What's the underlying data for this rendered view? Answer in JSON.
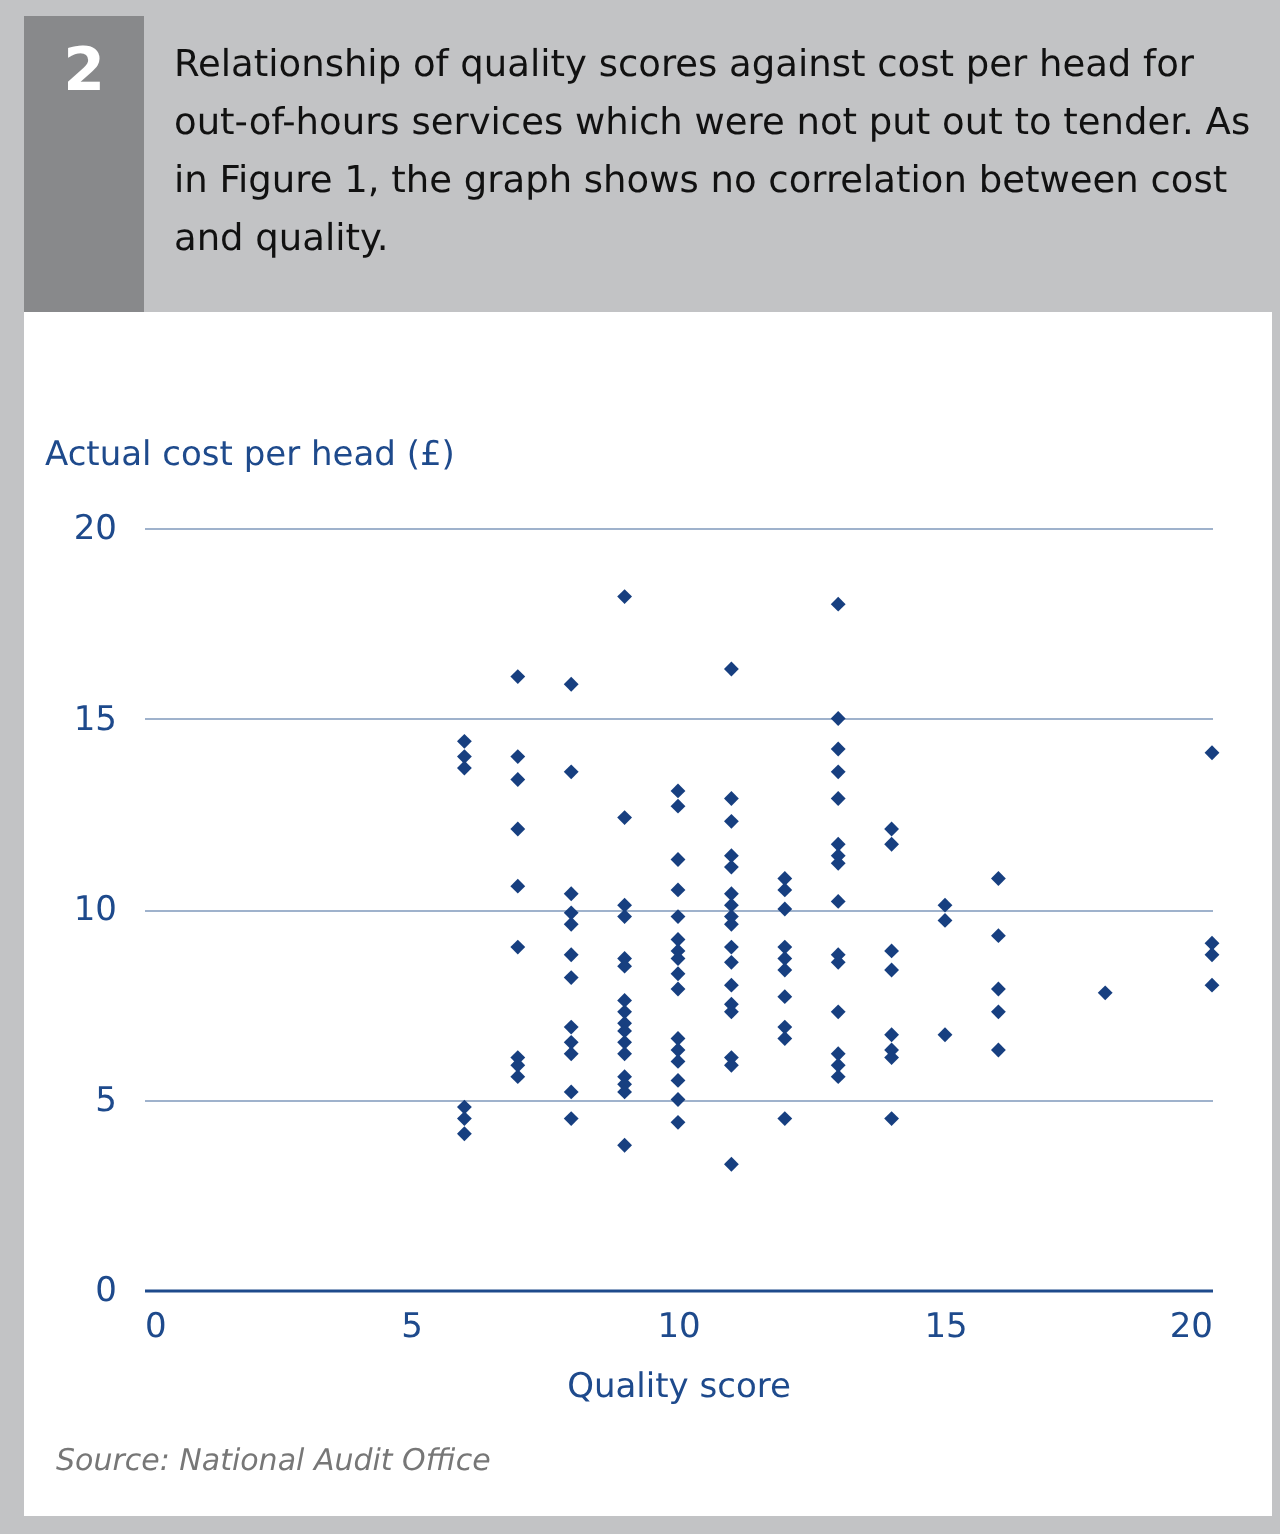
{
  "chart_data": {
    "type": "scatter",
    "title": "2",
    "subtitle": "Relationship of quality scores against cost per head for out-of-hours services which were not put out to tender. As in Figure 1, the graph shows no correlation between cost and quality.",
    "xlabel": "Quality score",
    "ylabel": "Actual cost per head (£)",
    "annotations": [
      "Source: National Audit Office"
    ],
    "x": [
      6,
      6,
      6,
      6,
      6,
      6,
      7,
      7,
      7,
      7,
      7,
      7,
      7,
      7,
      7,
      8,
      8,
      8,
      8,
      8,
      8,
      8,
      8,
      8,
      8,
      8,
      8,
      9,
      9,
      9,
      9,
      9,
      9,
      9,
      9,
      9,
      9,
      9,
      9,
      9,
      9,
      9,
      9,
      10,
      10,
      10,
      10,
      10,
      10,
      10,
      10,
      10,
      10,
      10,
      10,
      10,
      10,
      10,
      10,
      11,
      11,
      11,
      11,
      11,
      11,
      11,
      11,
      11,
      11,
      11,
      11,
      11,
      11,
      11,
      11,
      11,
      12,
      12,
      12,
      12,
      12,
      12,
      12,
      12,
      12,
      12,
      13,
      13,
      13,
      13,
      13,
      13,
      13,
      13,
      13,
      13,
      13,
      13,
      13,
      13,
      13,
      14,
      14,
      14,
      14,
      14,
      14,
      14,
      14,
      15,
      15,
      15,
      16,
      16,
      16,
      16,
      16,
      18,
      20,
      20,
      20,
      20
    ],
    "values": [
      14.4,
      14.0,
      13.7,
      4.8,
      4.5,
      4.1,
      16.1,
      14.0,
      13.4,
      12.1,
      10.6,
      9.0,
      6.1,
      5.9,
      5.6,
      15.9,
      13.6,
      10.4,
      9.9,
      9.6,
      8.8,
      8.2,
      6.9,
      6.5,
      6.2,
      5.2,
      4.5,
      18.2,
      12.4,
      10.1,
      9.8,
      8.7,
      8.5,
      7.6,
      7.3,
      7.0,
      6.8,
      6.5,
      6.2,
      5.6,
      5.4,
      5.2,
      3.8,
      13.1,
      12.7,
      11.3,
      10.5,
      9.8,
      9.2,
      8.9,
      8.7,
      8.3,
      7.9,
      6.6,
      6.3,
      6.0,
      5.5,
      5.0,
      4.4,
      16.3,
      12.9,
      12.3,
      11.4,
      11.1,
      10.4,
      10.1,
      9.8,
      9.6,
      9.0,
      8.6,
      8.0,
      7.5,
      7.3,
      6.1,
      5.9,
      3.3,
      10.8,
      10.5,
      10.0,
      9.0,
      8.7,
      8.4,
      7.7,
      6.9,
      6.6,
      4.5,
      18.0,
      15.0,
      14.2,
      13.6,
      12.9,
      11.7,
      11.4,
      11.2,
      10.2,
      8.8,
      8.6,
      7.3,
      6.2,
      5.9,
      5.6,
      12.1,
      11.7,
      8.9,
      8.4,
      6.7,
      6.3,
      6.1,
      4.5,
      10.1,
      9.7,
      6.7,
      10.8,
      9.3,
      7.9,
      7.3,
      6.3,
      7.8,
      14.1,
      9.1,
      8.8,
      8.0
    ],
    "color": "#173f80",
    "marker": "diamond",
    "xlim": [
      0,
      20
    ],
    "xticks": [
      0,
      5,
      10,
      15,
      20
    ],
    "ylim": [
      0,
      20
    ],
    "yticks": [
      0,
      5,
      10,
      15,
      20
    ],
    "grid": "y"
  }
}
